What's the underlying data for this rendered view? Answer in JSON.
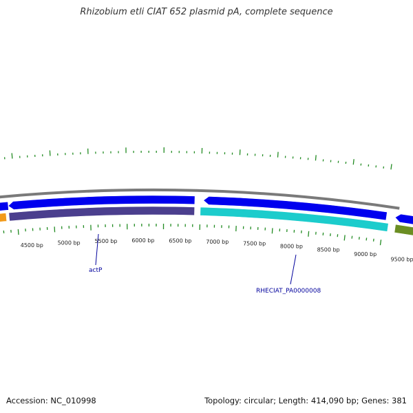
{
  "title": "Rhizobium etli CIAT 652 plasmid pA, complete sequence",
  "colors": {
    "outer_ticks": "#228b22",
    "backbone": "#7a7a7a",
    "forward_gene": "#0000ee",
    "gene_orange": "#f29a1a",
    "gene_purple": "#4b3f8e",
    "gene_cyan": "#1ccccc",
    "gene_olive": "#6b8e23",
    "inner_ticks": "#228b22"
  },
  "scale_labels": [
    "4500 bp",
    "5000 bp",
    "5500 bp",
    "6000 bp",
    "6500 bp",
    "7000 bp",
    "7500 bp",
    "8000 bp",
    "8500 bp",
    "9000 bp",
    "9500 bp"
  ],
  "gene_labels": {
    "actP": "actP",
    "rheciat": "RHECIAT_PA0000008"
  },
  "footer": {
    "accession": "Accession: NC_010998",
    "stats": "Topology: circular; Length: 414,090 bp; Genes: 381"
  }
}
